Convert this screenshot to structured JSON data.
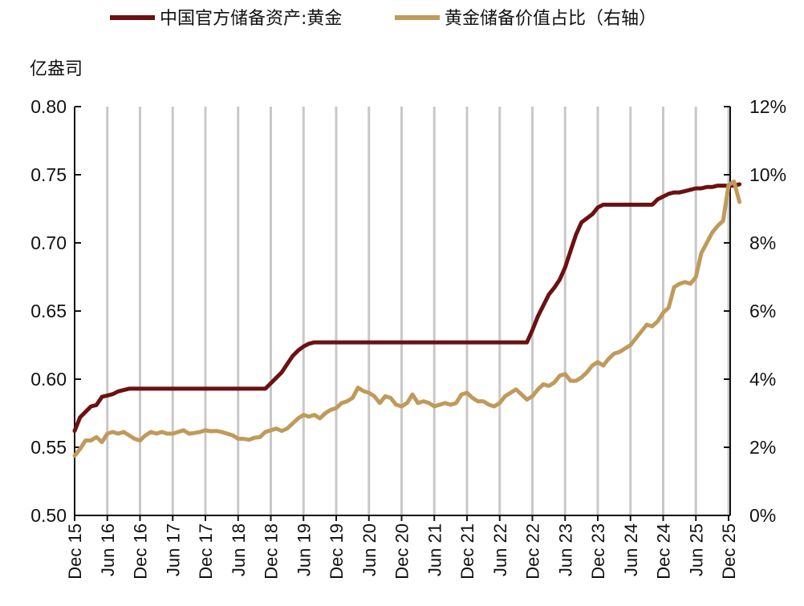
{
  "chart_data": {
    "type": "line",
    "unit_left": "亿盎司",
    "legend": [
      {
        "name": "中国官方储备资产:黄金",
        "color": "#6b1111",
        "axis": "left"
      },
      {
        "name": "黄金储备价值占比（右轴）",
        "color": "#c09a5b",
        "axis": "right"
      }
    ],
    "ylim_left": [
      0.5,
      0.8
    ],
    "yticks_left": [
      "0.80",
      "0.75",
      "0.70",
      "0.65",
      "0.60",
      "0.55",
      "0.50"
    ],
    "ylim_right": [
      0,
      12
    ],
    "yticks_right": [
      "12%",
      "10%",
      "8%",
      "6%",
      "4%",
      "2%",
      "0%"
    ],
    "xticks": [
      "Dec 15",
      "Jun 16",
      "Dec 16",
      "Jun 17",
      "Dec 17",
      "Jun 18",
      "Dec 18",
      "Jun 19",
      "Dec 19",
      "Jun 20",
      "Dec 20",
      "Jun 21",
      "Dec 21",
      "Jun 22",
      "Dec 22",
      "Jun 23",
      "Dec 23",
      "Jun 24",
      "Dec 24",
      "Jun 25",
      "Dec 25"
    ],
    "series": [
      {
        "name": "中国官方储备资产:黄金",
        "axis": "left",
        "points": [
          [
            0,
            0.562
          ],
          [
            1,
            0.572
          ],
          [
            2,
            0.576
          ],
          [
            3,
            0.58
          ],
          [
            4,
            0.581
          ],
          [
            5,
            0.587
          ],
          [
            6,
            0.588
          ],
          [
            7,
            0.589
          ],
          [
            8,
            0.591
          ],
          [
            9,
            0.592
          ],
          [
            10,
            0.593
          ],
          [
            35,
            0.593
          ],
          [
            36,
            0.597
          ],
          [
            37,
            0.601
          ],
          [
            38,
            0.605
          ],
          [
            39,
            0.611
          ],
          [
            40,
            0.617
          ],
          [
            41,
            0.621
          ],
          [
            42,
            0.624
          ],
          [
            43,
            0.626
          ],
          [
            44,
            0.627
          ],
          [
            83,
            0.627
          ],
          [
            84,
            0.636
          ],
          [
            85,
            0.646
          ],
          [
            86,
            0.654
          ],
          [
            87,
            0.662
          ],
          [
            88,
            0.667
          ],
          [
            89,
            0.673
          ],
          [
            90,
            0.682
          ],
          [
            91,
            0.694
          ],
          [
            92,
            0.706
          ],
          [
            93,
            0.715
          ],
          [
            94,
            0.718
          ],
          [
            95,
            0.721
          ],
          [
            96,
            0.726
          ],
          [
            97,
            0.728
          ],
          [
            98,
            0.728
          ],
          [
            106,
            0.728
          ],
          [
            107,
            0.732
          ],
          [
            108,
            0.734
          ],
          [
            109,
            0.736
          ],
          [
            110,
            0.737
          ],
          [
            111,
            0.737
          ],
          [
            112,
            0.738
          ],
          [
            113,
            0.739
          ],
          [
            114,
            0.74
          ],
          [
            115,
            0.74
          ],
          [
            116,
            0.741
          ],
          [
            117,
            0.741
          ],
          [
            118,
            0.742
          ],
          [
            119,
            0.742
          ],
          [
            120,
            0.742
          ],
          [
            121,
            0.742
          ],
          [
            122,
            0.743
          ]
        ]
      },
      {
        "name": "黄金储备价值占比（右轴）",
        "axis": "right",
        "points": [
          [
            0,
            1.75
          ],
          [
            1,
            1.95
          ],
          [
            2,
            2.2
          ],
          [
            3,
            2.2
          ],
          [
            4,
            2.3
          ],
          [
            5,
            2.15
          ],
          [
            6,
            2.4
          ],
          [
            7,
            2.45
          ],
          [
            8,
            2.4
          ],
          [
            9,
            2.45
          ],
          [
            10,
            2.35
          ],
          [
            11,
            2.25
          ],
          [
            12,
            2.2
          ],
          [
            13,
            2.35
          ],
          [
            14,
            2.45
          ],
          [
            15,
            2.4
          ],
          [
            16,
            2.45
          ],
          [
            17,
            2.4
          ],
          [
            18,
            2.4
          ],
          [
            19,
            2.45
          ],
          [
            20,
            2.5
          ],
          [
            21,
            2.4
          ],
          [
            22,
            2.42
          ],
          [
            23,
            2.45
          ],
          [
            24,
            2.5
          ],
          [
            25,
            2.47
          ],
          [
            26,
            2.48
          ],
          [
            27,
            2.45
          ],
          [
            28,
            2.4
          ],
          [
            29,
            2.35
          ],
          [
            30,
            2.25
          ],
          [
            31,
            2.25
          ],
          [
            32,
            2.22
          ],
          [
            33,
            2.28
          ],
          [
            34,
            2.3
          ],
          [
            35,
            2.45
          ],
          [
            36,
            2.5
          ],
          [
            37,
            2.55
          ],
          [
            38,
            2.48
          ],
          [
            39,
            2.55
          ],
          [
            40,
            2.7
          ],
          [
            41,
            2.85
          ],
          [
            42,
            2.95
          ],
          [
            43,
            2.9
          ],
          [
            44,
            2.95
          ],
          [
            45,
            2.85
          ],
          [
            46,
            3.0
          ],
          [
            47,
            3.1
          ],
          [
            48,
            3.15
          ],
          [
            49,
            3.3
          ],
          [
            50,
            3.35
          ],
          [
            51,
            3.45
          ],
          [
            52,
            3.75
          ],
          [
            53,
            3.65
          ],
          [
            54,
            3.6
          ],
          [
            55,
            3.5
          ],
          [
            56,
            3.3
          ],
          [
            57,
            3.5
          ],
          [
            58,
            3.45
          ],
          [
            59,
            3.25
          ],
          [
            60,
            3.2
          ],
          [
            61,
            3.3
          ],
          [
            62,
            3.55
          ],
          [
            63,
            3.3
          ],
          [
            64,
            3.35
          ],
          [
            65,
            3.3
          ],
          [
            66,
            3.2
          ],
          [
            67,
            3.25
          ],
          [
            68,
            3.3
          ],
          [
            69,
            3.25
          ],
          [
            70,
            3.3
          ],
          [
            71,
            3.55
          ],
          [
            72,
            3.6
          ],
          [
            73,
            3.45
          ],
          [
            74,
            3.35
          ],
          [
            75,
            3.35
          ],
          [
            76,
            3.25
          ],
          [
            77,
            3.2
          ],
          [
            78,
            3.3
          ],
          [
            79,
            3.5
          ],
          [
            80,
            3.6
          ],
          [
            81,
            3.7
          ],
          [
            82,
            3.55
          ],
          [
            83,
            3.4
          ],
          [
            84,
            3.5
          ],
          [
            85,
            3.7
          ],
          [
            86,
            3.85
          ],
          [
            87,
            3.8
          ],
          [
            88,
            3.9
          ],
          [
            89,
            4.1
          ],
          [
            90,
            4.15
          ],
          [
            91,
            3.95
          ],
          [
            92,
            3.95
          ],
          [
            93,
            4.05
          ],
          [
            94,
            4.2
          ],
          [
            95,
            4.4
          ],
          [
            96,
            4.5
          ],
          [
            97,
            4.4
          ],
          [
            98,
            4.6
          ],
          [
            99,
            4.75
          ],
          [
            100,
            4.8
          ],
          [
            101,
            4.9
          ],
          [
            102,
            5.0
          ],
          [
            103,
            5.2
          ],
          [
            104,
            5.4
          ],
          [
            105,
            5.6
          ],
          [
            106,
            5.55
          ],
          [
            107,
            5.7
          ],
          [
            108,
            5.95
          ],
          [
            109,
            6.1
          ],
          [
            110,
            6.7
          ],
          [
            111,
            6.8
          ],
          [
            112,
            6.85
          ],
          [
            113,
            6.8
          ],
          [
            114,
            7.0
          ],
          [
            115,
            7.7
          ],
          [
            116,
            8.0
          ],
          [
            117,
            8.3
          ],
          [
            118,
            8.5
          ],
          [
            119,
            8.65
          ],
          [
            120,
            9.7
          ],
          [
            121,
            9.8
          ],
          [
            122,
            9.2
          ]
        ]
      }
    ]
  }
}
